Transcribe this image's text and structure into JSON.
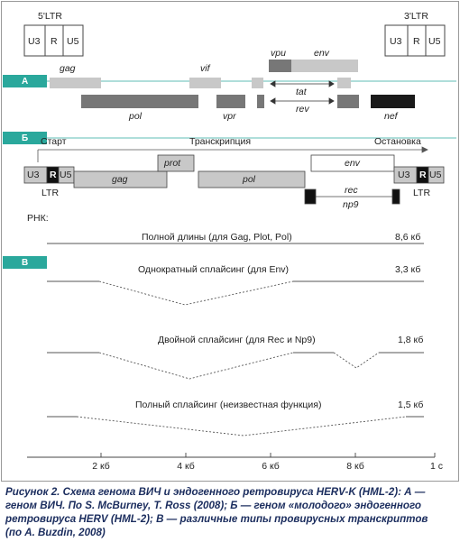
{
  "top": {
    "ltr5": "5'LTR",
    "ltr5_boxes": [
      "U3",
      "R",
      "U5"
    ],
    "ltr3": "3'LTR",
    "ltr3_boxes": [
      "U3",
      "R",
      "U5"
    ]
  },
  "panel_a": {
    "label": "А",
    "genes": [
      "gag",
      "vif",
      "vpu",
      "env",
      "tat",
      "rev",
      "pol",
      "vpr",
      "nef"
    ]
  },
  "panel_b": {
    "label": "Б",
    "start": "Старт",
    "transcription": "Транскрипция",
    "stop": "Остановка",
    "ltr_left": [
      "U3",
      "R",
      "U5"
    ],
    "ltr_right": [
      "U3",
      "R",
      "U5"
    ],
    "ltr_left_label": "LTR",
    "ltr_right_label": "LTR",
    "genes": [
      "gag",
      "prot",
      "pol",
      "env",
      "rec",
      "np9"
    ]
  },
  "rna_label": "РНК:",
  "panel_c": {
    "label": "В",
    "transcripts": [
      {
        "name": "Полной длины (для Gag, Plot, Pol)",
        "size": "8,6 кб"
      },
      {
        "name": "Однократный сплайсинг (для Env)",
        "size": "3,3 кб"
      },
      {
        "name": "Двойной сплайсинг (для Rec и Np9)",
        "size": "1,8 кб"
      },
      {
        "name": "Полный сплайсинг (неизвестная функция)",
        "size": "1,5 кб"
      }
    ]
  },
  "axis": [
    "2 кб",
    "4 кб",
    "6 кб",
    "8 кб",
    "1 с"
  ],
  "caption": [
    "Рисунок 2. Схема генома ВИЧ и эндогенного ретровируса HERV-K (HML-2): А —",
    "геном ВИЧ. По S. McBurney, T. Ross (2008); Б — геном «молодого» эндогенного",
    "ретровируса HERV (HML-2); В — различные типы провирусных транскриптов",
    "(по A. Buzdin, 2008)"
  ]
}
